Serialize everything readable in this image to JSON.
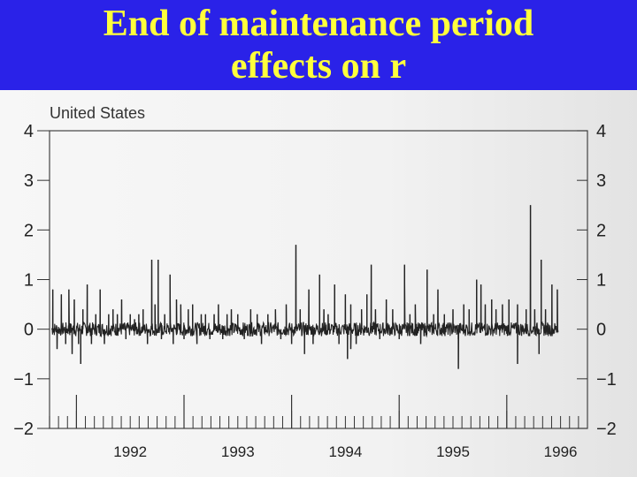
{
  "slide": {
    "title_line1": "End of maintenance period",
    "title_line2": "effects on r",
    "title_color": "#ffff3c",
    "title_bg": "#2a22e8"
  },
  "chart_data": {
    "type": "line",
    "subtitle": "United States",
    "xlabel": "",
    "ylabel": "",
    "ylim": [
      -2,
      4
    ],
    "xlim": [
      1991.75,
      1996.75
    ],
    "y_ticks": [
      "4",
      "3",
      "2",
      "1",
      "0",
      "−1",
      "−2"
    ],
    "y_tick_values": [
      4,
      3,
      2,
      1,
      0,
      -1,
      -2
    ],
    "x_tick_labels": [
      "1992",
      "1993",
      "1994",
      "1995",
      "1996"
    ],
    "x_tick_values": [
      1992,
      1993,
      1994,
      1995,
      1996
    ],
    "grid": false,
    "series": [
      {
        "line_color": "#222222",
        "spikes": [
          [
            1991.78,
            0.8
          ],
          [
            1991.82,
            -0.4
          ],
          [
            1991.86,
            0.7
          ],
          [
            1991.9,
            -0.3
          ],
          [
            1991.93,
            0.8
          ],
          [
            1991.96,
            -0.5
          ],
          [
            1991.98,
            0.6
          ],
          [
            1992.02,
            -0.3
          ],
          [
            1992.06,
            0.4
          ],
          [
            1992.1,
            0.9
          ],
          [
            1992.14,
            -0.3
          ],
          [
            1992.18,
            0.3
          ],
          [
            1992.22,
            0.8
          ],
          [
            1992.26,
            -0.3
          ],
          [
            1992.3,
            0.3
          ],
          [
            1992.34,
            0.4
          ],
          [
            1992.38,
            0.3
          ],
          [
            1992.42,
            0.6
          ],
          [
            1992.46,
            -0.2
          ],
          [
            1992.5,
            0.3
          ],
          [
            1992.54,
            0.2
          ],
          [
            1992.58,
            0.3
          ],
          [
            1992.62,
            0.4
          ],
          [
            1992.66,
            -0.3
          ],
          [
            1992.7,
            1.4
          ],
          [
            1992.73,
            0.5
          ],
          [
            1992.76,
            1.4
          ],
          [
            1992.79,
            -0.2
          ],
          [
            1992.82,
            0.3
          ],
          [
            1992.87,
            1.1
          ],
          [
            1992.9,
            -0.3
          ],
          [
            1992.93,
            0.6
          ],
          [
            1992.97,
            0.5
          ],
          [
            1993.0,
            -0.2
          ],
          [
            1993.04,
            0.4
          ],
          [
            1993.08,
            0.5
          ],
          [
            1993.12,
            -0.3
          ],
          [
            1993.16,
            0.3
          ],
          [
            1993.2,
            0.3
          ],
          [
            1993.24,
            -0.2
          ],
          [
            1993.28,
            0.3
          ],
          [
            1993.32,
            0.5
          ],
          [
            1993.36,
            -0.2
          ],
          [
            1993.4,
            0.3
          ],
          [
            1993.44,
            0.4
          ],
          [
            1993.5,
            0.3
          ],
          [
            1993.56,
            -0.2
          ],
          [
            1993.62,
            0.4
          ],
          [
            1993.68,
            0.3
          ],
          [
            1993.72,
            -0.3
          ],
          [
            1993.78,
            0.3
          ],
          [
            1993.85,
            0.4
          ],
          [
            1993.9,
            -0.2
          ],
          [
            1993.95,
            0.5
          ],
          [
            1994.0,
            -0.3
          ],
          [
            1994.04,
            1.7
          ],
          [
            1994.08,
            0.4
          ],
          [
            1994.12,
            -0.2
          ],
          [
            1994.16,
            0.8
          ],
          [
            1994.2,
            -0.3
          ],
          [
            1994.26,
            1.1
          ],
          [
            1994.3,
            0.4
          ],
          [
            1994.34,
            0.3
          ],
          [
            1994.4,
            0.9
          ],
          [
            1994.44,
            -0.3
          ],
          [
            1994.5,
            0.7
          ],
          [
            1994.55,
            0.5
          ],
          [
            1994.6,
            -0.3
          ],
          [
            1994.65,
            0.4
          ],
          [
            1994.7,
            0.7
          ],
          [
            1994.74,
            1.3
          ],
          [
            1994.78,
            0.4
          ],
          [
            1994.82,
            -0.2
          ],
          [
            1994.88,
            0.6
          ],
          [
            1994.94,
            0.4
          ],
          [
            1995.0,
            -0.2
          ],
          [
            1995.05,
            1.3
          ],
          [
            1995.1,
            0.3
          ],
          [
            1995.15,
            0.5
          ],
          [
            1995.2,
            -0.3
          ],
          [
            1995.26,
            1.2
          ],
          [
            1995.32,
            0.3
          ],
          [
            1995.36,
            0.8
          ],
          [
            1995.42,
            0.3
          ],
          [
            1995.5,
            0.4
          ],
          [
            1995.55,
            -0.2
          ],
          [
            1995.6,
            0.5
          ],
          [
            1995.65,
            0.4
          ],
          [
            1995.72,
            1.0
          ],
          [
            1995.76,
            0.9
          ],
          [
            1995.8,
            0.5
          ],
          [
            1995.86,
            0.6
          ],
          [
            1995.9,
            0.4
          ],
          [
            1995.96,
            0.5
          ],
          [
            1996.02,
            0.6
          ],
          [
            1996.1,
            0.5
          ],
          [
            1996.18,
            0.4
          ],
          [
            1996.22,
            2.5
          ],
          [
            1996.26,
            0.4
          ],
          [
            1996.32,
            1.4
          ],
          [
            1996.36,
            0.4
          ],
          [
            1996.42,
            0.9
          ],
          [
            1996.47,
            0.8
          ]
        ],
        "dips": [
          [
            1992.04,
            -0.7
          ],
          [
            1994.12,
            -0.5
          ],
          [
            1994.52,
            -0.6
          ],
          [
            1994.55,
            -0.4
          ],
          [
            1995.55,
            -0.8
          ],
          [
            1996.1,
            -0.7
          ],
          [
            1996.3,
            -0.5
          ]
        ]
      }
    ]
  }
}
